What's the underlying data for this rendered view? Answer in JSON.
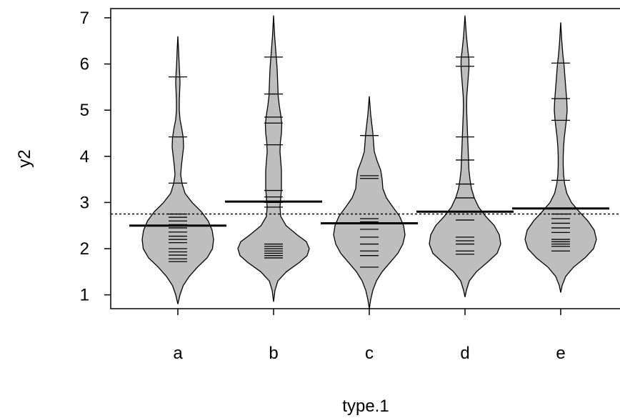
{
  "chart_data": {
    "type": "beanplot",
    "xlabel": "type.1",
    "ylabel": "y2",
    "categories": [
      "a",
      "b",
      "c",
      "d",
      "e"
    ],
    "ylim": [
      0.7,
      7.2
    ],
    "yticks": [
      1,
      2,
      3,
      4,
      5,
      6,
      7
    ],
    "overall_mean": 2.75,
    "fill_color": "#BEBEBE",
    "beans": [
      {
        "category": "a",
        "mean": 2.5,
        "range": [
          0.8,
          6.6
        ],
        "density": [
          [
            0.8,
            0
          ],
          [
            1.0,
            0.06
          ],
          [
            1.2,
            0.15
          ],
          [
            1.4,
            0.32
          ],
          [
            1.6,
            0.55
          ],
          [
            1.8,
            0.82
          ],
          [
            2.0,
            0.97
          ],
          [
            2.2,
            1.0
          ],
          [
            2.4,
            0.96
          ],
          [
            2.6,
            0.85
          ],
          [
            2.8,
            0.66
          ],
          [
            3.0,
            0.4
          ],
          [
            3.2,
            0.2
          ],
          [
            3.4,
            0.12
          ],
          [
            3.6,
            0.08
          ],
          [
            3.8,
            0.1
          ],
          [
            4.0,
            0.13
          ],
          [
            4.2,
            0.16
          ],
          [
            4.4,
            0.15
          ],
          [
            4.6,
            0.11
          ],
          [
            4.8,
            0.06
          ],
          [
            5.0,
            0.04
          ],
          [
            5.2,
            0.04
          ],
          [
            5.4,
            0.05
          ],
          [
            5.6,
            0.06
          ],
          [
            5.8,
            0.05
          ],
          [
            6.0,
            0.035
          ],
          [
            6.3,
            0.02
          ],
          [
            6.6,
            0
          ]
        ],
        "points": [
          1.72,
          1.78,
          1.86,
          1.93,
          2.0,
          2.13,
          2.2,
          2.27,
          2.36,
          2.45,
          2.52,
          2.6,
          2.68,
          2.75,
          3.42,
          4.42,
          5.72
        ]
      },
      {
        "category": "b",
        "mean": 3.02,
        "range": [
          0.85,
          7.05
        ],
        "density": [
          [
            0.85,
            0
          ],
          [
            1.1,
            0.04
          ],
          [
            1.3,
            0.12
          ],
          [
            1.5,
            0.36
          ],
          [
            1.7,
            0.72
          ],
          [
            1.85,
            0.94
          ],
          [
            2.0,
            1.0
          ],
          [
            2.15,
            0.92
          ],
          [
            2.3,
            0.66
          ],
          [
            2.5,
            0.35
          ],
          [
            2.7,
            0.2
          ],
          [
            2.9,
            0.18
          ],
          [
            3.1,
            0.2
          ],
          [
            3.3,
            0.22
          ],
          [
            3.5,
            0.22
          ],
          [
            3.7,
            0.22
          ],
          [
            3.9,
            0.2
          ],
          [
            4.1,
            0.18
          ],
          [
            4.3,
            0.19
          ],
          [
            4.5,
            0.22
          ],
          [
            4.7,
            0.23
          ],
          [
            4.9,
            0.2
          ],
          [
            5.1,
            0.16
          ],
          [
            5.3,
            0.13
          ],
          [
            5.5,
            0.12
          ],
          [
            5.7,
            0.11
          ],
          [
            5.9,
            0.1
          ],
          [
            6.1,
            0.08
          ],
          [
            6.3,
            0.06
          ],
          [
            6.6,
            0.03
          ],
          [
            7.05,
            0
          ]
        ],
        "points": [
          1.8,
          1.85,
          1.9,
          1.95,
          2.0,
          2.05,
          2.1,
          2.9,
          3.0,
          3.12,
          3.26,
          4.25,
          4.72,
          4.85,
          5.35,
          6.15
        ]
      },
      {
        "category": "c",
        "mean": 2.55,
        "range": [
          0.7,
          5.3
        ],
        "density": [
          [
            0.7,
            0
          ],
          [
            0.9,
            0.04
          ],
          [
            1.1,
            0.1
          ],
          [
            1.3,
            0.2
          ],
          [
            1.5,
            0.36
          ],
          [
            1.7,
            0.58
          ],
          [
            1.9,
            0.8
          ],
          [
            2.1,
            0.94
          ],
          [
            2.3,
            1.0
          ],
          [
            2.5,
            0.96
          ],
          [
            2.7,
            0.85
          ],
          [
            2.9,
            0.66
          ],
          [
            3.1,
            0.48
          ],
          [
            3.3,
            0.38
          ],
          [
            3.5,
            0.36
          ],
          [
            3.7,
            0.32
          ],
          [
            3.9,
            0.22
          ],
          [
            4.1,
            0.14
          ],
          [
            4.3,
            0.12
          ],
          [
            4.5,
            0.1
          ],
          [
            4.7,
            0.07
          ],
          [
            4.9,
            0.04
          ],
          [
            5.1,
            0.02
          ],
          [
            5.3,
            0
          ]
        ],
        "points": [
          1.6,
          1.85,
          1.95,
          2.1,
          2.25,
          2.42,
          2.58,
          2.65,
          3.52,
          3.58,
          4.45
        ]
      },
      {
        "category": "d",
        "mean": 2.8,
        "range": [
          0.95,
          7.05
        ],
        "density": [
          [
            0.95,
            0
          ],
          [
            1.1,
            0.04
          ],
          [
            1.3,
            0.12
          ],
          [
            1.5,
            0.32
          ],
          [
            1.7,
            0.62
          ],
          [
            1.9,
            0.9
          ],
          [
            2.1,
            1.0
          ],
          [
            2.3,
            0.96
          ],
          [
            2.5,
            0.82
          ],
          [
            2.7,
            0.58
          ],
          [
            2.9,
            0.38
          ],
          [
            3.1,
            0.26
          ],
          [
            3.3,
            0.18
          ],
          [
            3.5,
            0.14
          ],
          [
            3.7,
            0.11
          ],
          [
            3.9,
            0.1
          ],
          [
            4.1,
            0.09
          ],
          [
            4.3,
            0.08
          ],
          [
            4.5,
            0.07
          ],
          [
            4.7,
            0.06
          ],
          [
            4.9,
            0.05
          ],
          [
            5.1,
            0.045
          ],
          [
            5.3,
            0.05
          ],
          [
            5.5,
            0.07
          ],
          [
            5.7,
            0.09
          ],
          [
            5.9,
            0.11
          ],
          [
            6.1,
            0.11
          ],
          [
            6.3,
            0.08
          ],
          [
            6.6,
            0.04
          ],
          [
            7.05,
            0
          ]
        ],
        "points": [
          1.88,
          1.95,
          2.1,
          2.17,
          2.25,
          2.62,
          3.1,
          3.4,
          3.92,
          4.42,
          5.95,
          6.15
        ]
      },
      {
        "category": "e",
        "mean": 2.87,
        "range": [
          1.05,
          6.9
        ],
        "density": [
          [
            1.05,
            0
          ],
          [
            1.2,
            0.04
          ],
          [
            1.4,
            0.14
          ],
          [
            1.6,
            0.36
          ],
          [
            1.8,
            0.68
          ],
          [
            2.0,
            0.92
          ],
          [
            2.2,
            1.0
          ],
          [
            2.4,
            0.94
          ],
          [
            2.6,
            0.76
          ],
          [
            2.8,
            0.52
          ],
          [
            3.0,
            0.3
          ],
          [
            3.2,
            0.17
          ],
          [
            3.4,
            0.11
          ],
          [
            3.6,
            0.08
          ],
          [
            3.8,
            0.07
          ],
          [
            4.0,
            0.07
          ],
          [
            4.2,
            0.08
          ],
          [
            4.4,
            0.1
          ],
          [
            4.6,
            0.13
          ],
          [
            4.8,
            0.16
          ],
          [
            5.0,
            0.18
          ],
          [
            5.2,
            0.17
          ],
          [
            5.4,
            0.15
          ],
          [
            5.6,
            0.13
          ],
          [
            5.8,
            0.11
          ],
          [
            6.0,
            0.09
          ],
          [
            6.2,
            0.06
          ],
          [
            6.5,
            0.03
          ],
          [
            6.9,
            0
          ]
        ],
        "points": [
          1.95,
          2.05,
          2.1,
          2.15,
          2.2,
          2.35,
          2.45,
          2.55,
          2.65,
          2.75,
          3.48,
          4.78,
          5.25,
          6.02
        ]
      }
    ]
  }
}
